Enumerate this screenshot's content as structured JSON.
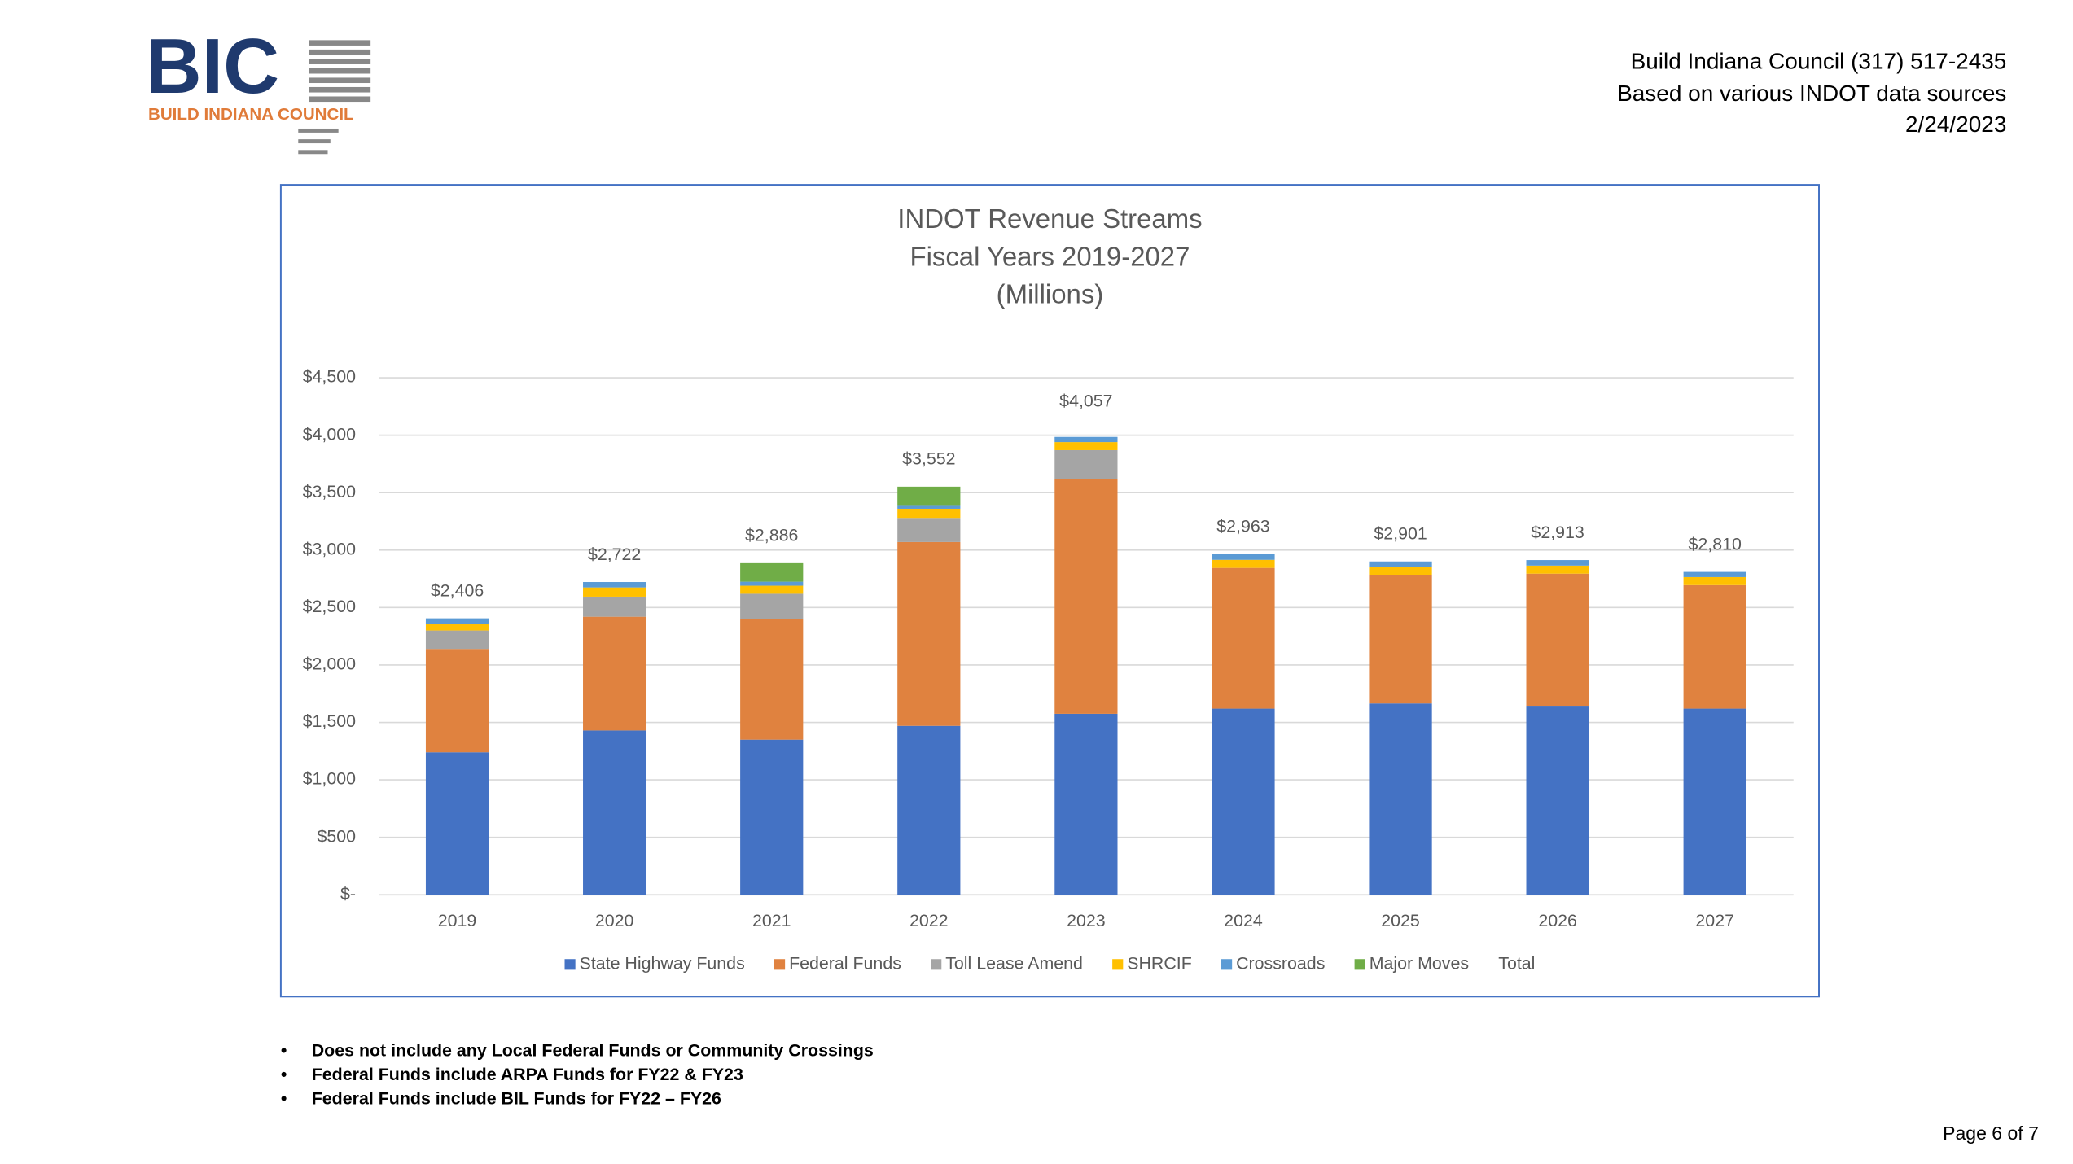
{
  "header": {
    "logo_text": "BIC",
    "logo_subtitle": "BUILD INDIANA COUNCIL",
    "lines": [
      "Build Indiana Council (317) 517-2435",
      "Based on various INDOT data sources",
      "2/24/2023"
    ]
  },
  "chart_data": {
    "type": "stacked_bar",
    "title": [
      "INDOT Revenue Streams",
      "Fiscal Years 2019-2027",
      "(Millions)"
    ],
    "categories": [
      "2019",
      "2020",
      "2021",
      "2022",
      "2023",
      "2024",
      "2025",
      "2026",
      "2027"
    ],
    "series": [
      {
        "name": "State Highway Funds",
        "color": "#4472c4",
        "values": [
          1240,
          1430,
          1350,
          1470,
          1575,
          1620,
          1665,
          1645,
          1620
        ]
      },
      {
        "name": "Federal Funds",
        "color": "#e0823f",
        "values": [
          900,
          990,
          1050,
          1600,
          2040,
          1225,
          1120,
          1150,
          1075
        ]
      },
      {
        "name": "Toll Lease Amend",
        "color": "#a5a5a5",
        "values": [
          160,
          175,
          220,
          210,
          255,
          0,
          0,
          0,
          0
        ]
      },
      {
        "name": "SHRCIF",
        "color": "#ffc000",
        "values": [
          55,
          80,
          70,
          80,
          70,
          70,
          70,
          70,
          70
        ]
      },
      {
        "name": "Crossroads",
        "color": "#5b9bd5",
        "values": [
          51,
          47,
          35,
          25,
          45,
          48,
          46,
          48,
          45
        ]
      },
      {
        "name": "Major Moves",
        "color": "#70ad47",
        "values": [
          0,
          0,
          161,
          167,
          0,
          0,
          0,
          0,
          0
        ]
      },
      {
        "name": "Total",
        "color": null,
        "values": [
          2406,
          2722,
          2886,
          3552,
          4057,
          2963,
          2901,
          2913,
          2810
        ],
        "value_labels": [
          "$2,406",
          "$2,722",
          "$2,886",
          "$3,552",
          "$4,057",
          "$2,963",
          "$2,901",
          "$2,913",
          "$2,810"
        ]
      }
    ],
    "ylim": [
      0,
      4500
    ],
    "yticks": [
      {
        "value": 0,
        "label": "$-"
      },
      {
        "value": 500,
        "label": "$500"
      },
      {
        "value": 1000,
        "label": "$1,000"
      },
      {
        "value": 1500,
        "label": "$1,500"
      },
      {
        "value": 2000,
        "label": "$2,000"
      },
      {
        "value": 2500,
        "label": "$2,500"
      },
      {
        "value": 3000,
        "label": "$3,000"
      },
      {
        "value": 3500,
        "label": "$3,500"
      },
      {
        "value": 4000,
        "label": "$4,000"
      },
      {
        "value": 4500,
        "label": "$4,500"
      }
    ],
    "grid": true,
    "legend": "bottom"
  },
  "notes": [
    "Does not include any Local Federal Funds or Community Crossings",
    "Federal Funds include ARPA Funds for FY22 & FY23",
    "Federal Funds include BIL Funds for FY22 – FY26"
  ],
  "footer": {
    "page": "Page 6 of 7"
  }
}
